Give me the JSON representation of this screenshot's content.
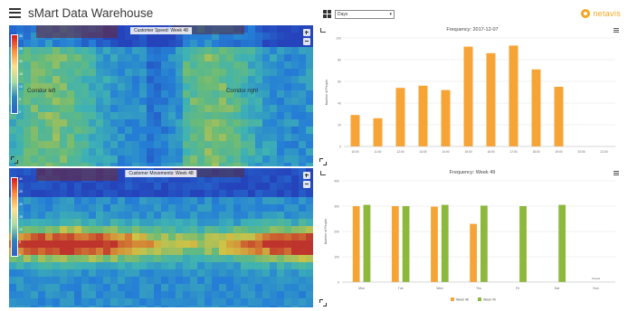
{
  "header": {
    "title": "sMart Data Warehouse",
    "period_select": "Days",
    "logo_text": "netavis"
  },
  "heatmaps": [
    {
      "title": "Customer Speed: Week 48",
      "zones": [
        "Corridor left",
        "Corridor right"
      ],
      "legend": [
        "30",
        "25",
        "20",
        "15",
        "10",
        "5",
        "0"
      ]
    },
    {
      "title": "Customer Movements: Week 48",
      "zones": [],
      "legend": [
        "30",
        "25",
        "20",
        "15",
        "10",
        "5",
        "0"
      ]
    }
  ],
  "colors": {
    "orange": "#f7a436",
    "green": "#8cb83c",
    "grid": "#e6e6e6",
    "brand": "#f5a623"
  },
  "chart_data": [
    {
      "type": "bar",
      "title": "Frequency: 2017-12-07",
      "ylabel": "Number of People",
      "ylim": [
        0,
        100
      ],
      "yticks": [
        0,
        20,
        40,
        60,
        80,
        100
      ],
      "categories": [
        "10:00",
        "11:00",
        "12:00",
        "13:00",
        "14:00",
        "15:00",
        "16:00",
        "17:00",
        "18:00",
        "19:00",
        "20:00",
        "21:00"
      ],
      "values": [
        29,
        26,
        54,
        56,
        52,
        92,
        86,
        93,
        71,
        55,
        0,
        0
      ],
      "color": "#f7a436",
      "grid": true
    },
    {
      "type": "bar",
      "title": "Frequency: Week 49",
      "ylabel": "Number of People",
      "ylim": [
        0,
        400
      ],
      "yticks": [
        0,
        100,
        200,
        300,
        400
      ],
      "categories": [
        "Mon",
        "Tue",
        "Wed",
        "Thu",
        "Fri",
        "Sat",
        "Sun"
      ],
      "series": [
        {
          "name": "Week 48",
          "values": [
            300,
            300,
            298,
            230,
            0,
            0,
            0
          ],
          "color": "#f7a436"
        },
        {
          "name": "Week 49",
          "values": [
            305,
            300,
            305,
            302,
            300,
            305,
            0
          ],
          "color": "#8cb83c"
        }
      ],
      "legend": "bottom-center",
      "annotation": "Closed",
      "grid": true
    }
  ]
}
